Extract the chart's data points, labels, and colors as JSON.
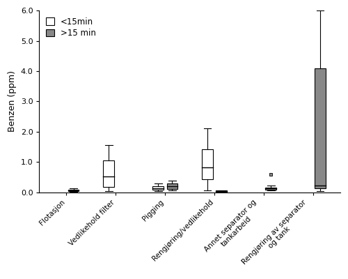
{
  "ylabel": "Benzen (ppm)",
  "ylim": [
    0,
    6.0
  ],
  "yticks": [
    0.0,
    1.0,
    2.0,
    3.0,
    4.0,
    5.0,
    6.0
  ],
  "categories": [
    "Flotasjon",
    "Vedlikehold filter",
    "Pigging",
    "Rengjøring/vedlikehold",
    "Annet separator og\ntankarbeid",
    "Rengjøring av separator\nog tank"
  ],
  "legend_labels": [
    "<15min",
    ">15 min"
  ],
  "gray_color": "#888888",
  "white_color": "#ffffff",
  "edge_color": "#000000",
  "boxes": [
    {
      "white": null,
      "gray": {
        "whislo": 0.01,
        "q1": 0.03,
        "median": 0.05,
        "q3": 0.08,
        "whishi": 0.12,
        "outlier": null
      }
    },
    {
      "white": {
        "whislo": 0.04,
        "q1": 0.18,
        "median": 0.52,
        "q3": 1.05,
        "whishi": 1.55,
        "outlier": null
      },
      "gray": null
    },
    {
      "white": {
        "whislo": 0.04,
        "q1": 0.08,
        "median": 0.13,
        "q3": 0.2,
        "whishi": 0.3,
        "outlier": null
      },
      "gray": {
        "whislo": 0.06,
        "q1": 0.1,
        "median": 0.21,
        "q3": 0.29,
        "whishi": 0.38,
        "outlier": null
      }
    },
    {
      "white": {
        "whislo": 0.07,
        "q1": 0.42,
        "median": 0.82,
        "q3": 1.42,
        "whishi": 2.1,
        "outlier": null
      },
      "gray": {
        "whislo": 0.01,
        "q1": 0.02,
        "median": 0.04,
        "q3": 0.05,
        "whishi": 0.07,
        "outlier": null
      }
    },
    {
      "white": null,
      "gray": {
        "whislo": 0.06,
        "q1": 0.08,
        "median": 0.12,
        "q3": 0.16,
        "whishi": 0.22,
        "outlier": 0.6
      }
    },
    {
      "white": null,
      "gray": {
        "whislo": 0.04,
        "q1": 0.13,
        "median": 0.22,
        "q3": 4.1,
        "whishi": 6.0,
        "outlier": null
      }
    }
  ],
  "figwidth": 5.0,
  "figheight": 4.0,
  "dpi": 100,
  "fontsize_ylabel": 9,
  "fontsize_xtick": 7.5,
  "fontsize_ytick": 8,
  "fontsize_legend": 8.5,
  "box_width": 0.22
}
